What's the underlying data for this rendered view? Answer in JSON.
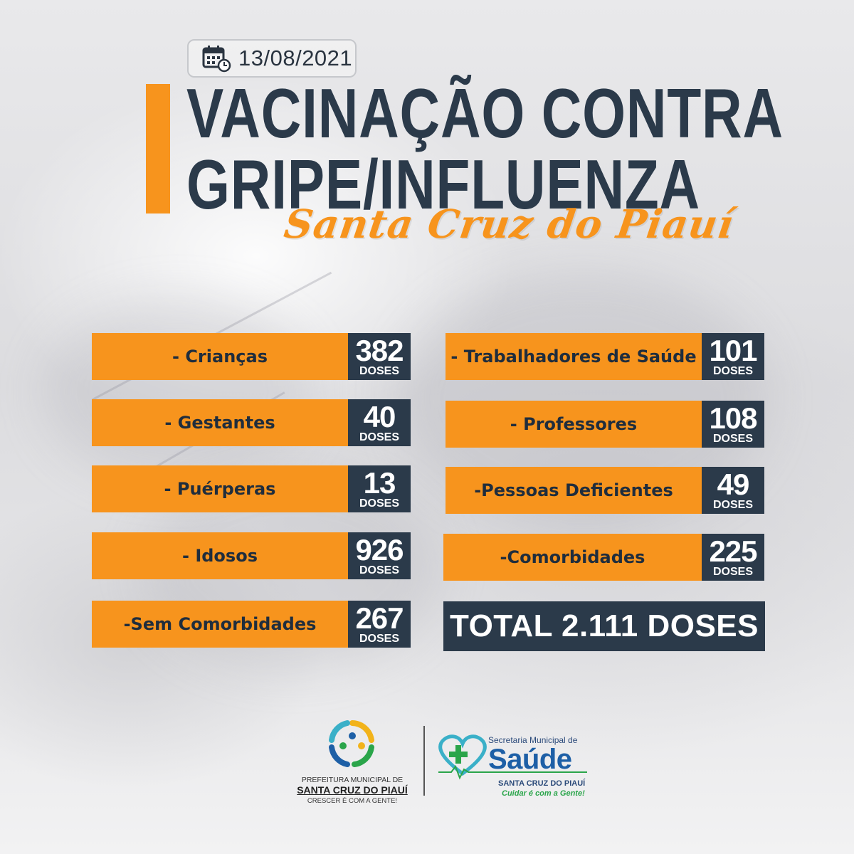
{
  "date": "13/08/2021",
  "title": {
    "line1": "VACINAÇÃO CONTRA",
    "line2": "GRIPE/INFLUENZA",
    "subtitle": "Santa Cruz do Piauí"
  },
  "colors": {
    "accent": "#f7941d",
    "dark": "#2b3a4a"
  },
  "unit_label": "DOSES",
  "left_groups": [
    {
      "label": "- Crianças",
      "count": "382"
    },
    {
      "label": "- Gestantes",
      "count": "40"
    },
    {
      "label": "- Puérperas",
      "count": "13"
    },
    {
      "label": "- Idosos",
      "count": "926"
    },
    {
      "label": "-Sem Comorbidades",
      "count": "267"
    }
  ],
  "right_groups": [
    {
      "label": "- Trabalhadores de Saúde",
      "count": "101"
    },
    {
      "label": "- Professores",
      "count": "108"
    },
    {
      "label": "-Pessoas Deficientes",
      "count": "49"
    },
    {
      "label": "-Comorbidades",
      "count": "225"
    }
  ],
  "total": "TOTAL 2.111 DOSES",
  "footer": {
    "prefeitura_line1": "PREFEITURA MUNICIPAL DE",
    "prefeitura_line2": "SANTA CRUZ DO PIAUÍ",
    "prefeitura_slogan": "CRESCER É COM A GENTE!",
    "secretaria_line1": "Secretaria Municipal de",
    "secretaria_name": "Saúde",
    "secretaria_city": "SANTA CRUZ DO PIAUÍ",
    "secretaria_slogan": "Cuidar é com a Gente!"
  },
  "icons": [
    "calendar-clock-icon",
    "prefeitura-logo",
    "saude-heart-logo"
  ]
}
